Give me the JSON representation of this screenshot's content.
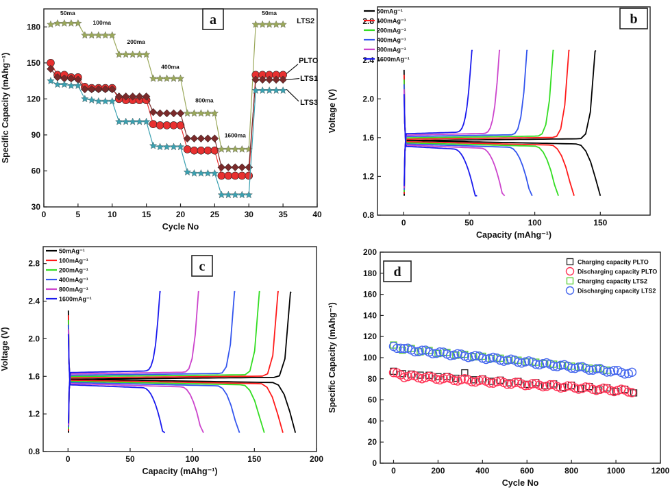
{
  "chart_data": [
    {
      "panel": "a",
      "type": "scatter",
      "xlabel": "Cycle No",
      "ylabel": "Specific Capacity (mAhg⁻¹)",
      "xlim": [
        0,
        40
      ],
      "ylim": [
        30,
        195
      ],
      "xticks": [
        "0",
        "5",
        "10",
        "15",
        "20",
        "25",
        "30",
        "35",
        "40"
      ],
      "yticks": [
        "30",
        "60",
        "90",
        "120",
        "150",
        "180"
      ],
      "rate_labels": [
        {
          "text": "50ma",
          "x": 3.5,
          "y": 190
        },
        {
          "text": "100ma",
          "x": 8.5,
          "y": 182
        },
        {
          "text": "200ma",
          "x": 13.5,
          "y": 166
        },
        {
          "text": "400ma",
          "x": 18.5,
          "y": 145
        },
        {
          "text": "800ma",
          "x": 23.5,
          "y": 117
        },
        {
          "text": "1600ma",
          "x": 28,
          "y": 88
        },
        {
          "text": "50ma",
          "x": 33,
          "y": 190
        }
      ],
      "series": [
        {
          "name": "LTS2",
          "marker": "star",
          "color": "#9aa85a",
          "values": [
            182,
            183,
            183,
            183,
            183,
            173,
            173,
            173,
            173,
            173,
            157,
            157,
            157,
            157,
            157,
            137,
            137,
            137,
            137,
            137,
            108,
            108,
            108,
            108,
            108,
            78,
            78,
            78,
            78,
            78,
            182,
            182,
            182,
            182,
            182
          ]
        },
        {
          "name": "PLTO",
          "marker": "circle",
          "color": "#e83030",
          "values": [
            150,
            140,
            140,
            138,
            138,
            130,
            129,
            129,
            129,
            129,
            120,
            119,
            119,
            119,
            119,
            99,
            98,
            98,
            98,
            98,
            78,
            77,
            77,
            77,
            77,
            56,
            56,
            56,
            56,
            56,
            140,
            140,
            140,
            140,
            140
          ]
        },
        {
          "name": "LTS1",
          "marker": "diamond",
          "color": "#7a2a2a",
          "values": [
            145,
            138,
            137,
            137,
            136,
            128,
            128,
            128,
            128,
            128,
            122,
            122,
            122,
            122,
            122,
            109,
            108,
            108,
            108,
            108,
            87,
            87,
            87,
            87,
            87,
            63,
            63,
            63,
            63,
            63,
            136,
            136,
            136,
            136,
            136
          ]
        },
        {
          "name": "LTS3",
          "marker": "star",
          "color": "#3aa0b0",
          "values": [
            135,
            132,
            132,
            131,
            131,
            120,
            119,
            118,
            118,
            118,
            101,
            101,
            101,
            101,
            101,
            81,
            80,
            80,
            80,
            80,
            59,
            58,
            58,
            58,
            58,
            40,
            40,
            40,
            40,
            40,
            127,
            127,
            127,
            127,
            127
          ]
        }
      ],
      "curve_labels": [
        {
          "text": "LTS2",
          "x": 37,
          "y": 183
        },
        {
          "text": "PLTO",
          "x": 37.3,
          "y": 150
        },
        {
          "text": "LTS1",
          "x": 37.5,
          "y": 135
        },
        {
          "text": "LTS3",
          "x": 37.5,
          "y": 115
        }
      ]
    },
    {
      "panel": "b",
      "type": "line",
      "xlabel": "Capacity (mAhg⁻¹)",
      "ylabel": "Voltage (V)",
      "xlim": [
        -20,
        188
      ],
      "ylim": [
        0.8,
        2.95
      ],
      "xticks": [
        "0",
        "50",
        "100",
        "150"
      ],
      "yticks": [
        "0.8",
        "1.2",
        "1.6",
        "2.0",
        "2.4",
        "2.8"
      ],
      "legend": "top-left",
      "series": [
        {
          "name": "50mAg⁻¹",
          "color": "#000000",
          "capacity": 150
        },
        {
          "name": "100mAg⁻¹",
          "color": "#ff1a1a",
          "capacity": 130
        },
        {
          "name": "200mAg⁻¹",
          "color": "#33dd22",
          "capacity": 118
        },
        {
          "name": "400mAg⁻¹",
          "color": "#3355ee",
          "capacity": 98
        },
        {
          "name": "800mAg⁻¹",
          "color": "#cc44cc",
          "capacity": 77
        },
        {
          "name": "1600mAg⁻¹",
          "color": "#1a1aee",
          "capacity": 56
        }
      ]
    },
    {
      "panel": "c",
      "type": "line",
      "xlabel": "Capacity (mAhg⁻¹)",
      "ylabel": "Voltage (V)",
      "xlim": [
        -20,
        200
      ],
      "ylim": [
        0.8,
        2.98
      ],
      "xticks": [
        "0",
        "50",
        "100",
        "150",
        "200"
      ],
      "yticks": [
        "0.8",
        "1.2",
        "1.6",
        "2.0",
        "2.4",
        "2.8"
      ],
      "legend": "top-left",
      "series": [
        {
          "name": "50mAg⁻¹",
          "color": "#000000",
          "capacity": 183
        },
        {
          "name": "100mAg⁻¹",
          "color": "#ff1a1a",
          "capacity": 173
        },
        {
          "name": "200mAg⁻¹",
          "color": "#33dd22",
          "capacity": 158
        },
        {
          "name": "400mAg⁻¹",
          "color": "#3355ee",
          "capacity": 138
        },
        {
          "name": "800mAg⁻¹",
          "color": "#cc44cc",
          "capacity": 109
        },
        {
          "name": "1600mAg⁻¹",
          "color": "#1a1aee",
          "capacity": 78
        }
      ]
    },
    {
      "panel": "d",
      "type": "scatter",
      "xlabel": "Cycle No",
      "ylabel": "Specific Capacity (mAhg⁻¹)",
      "xlim": [
        -60,
        1200
      ],
      "ylim": [
        0,
        200
      ],
      "xticks": [
        "0",
        "200",
        "400",
        "600",
        "800",
        "1000",
        "1200"
      ],
      "yticks": [
        "0",
        "20",
        "40",
        "60",
        "80",
        "100",
        "120",
        "140",
        "160",
        "180",
        "200"
      ],
      "legend": "top-right",
      "series": [
        {
          "name": "Charging capacity PLTO",
          "marker": "square",
          "color": "#222222",
          "start": 90,
          "end": 68
        },
        {
          "name": "Discharging capacity PLTO",
          "marker": "circle",
          "color": "#ff3355",
          "start": 87,
          "end": 68
        },
        {
          "name": "Charging capacity LTS2",
          "marker": "square",
          "color": "#55cc33",
          "start": 115,
          "end": 86
        },
        {
          "name": "Discharging capacity LTS2",
          "marker": "circle",
          "color": "#4466ee",
          "start": 115,
          "end": 85
        }
      ]
    }
  ]
}
